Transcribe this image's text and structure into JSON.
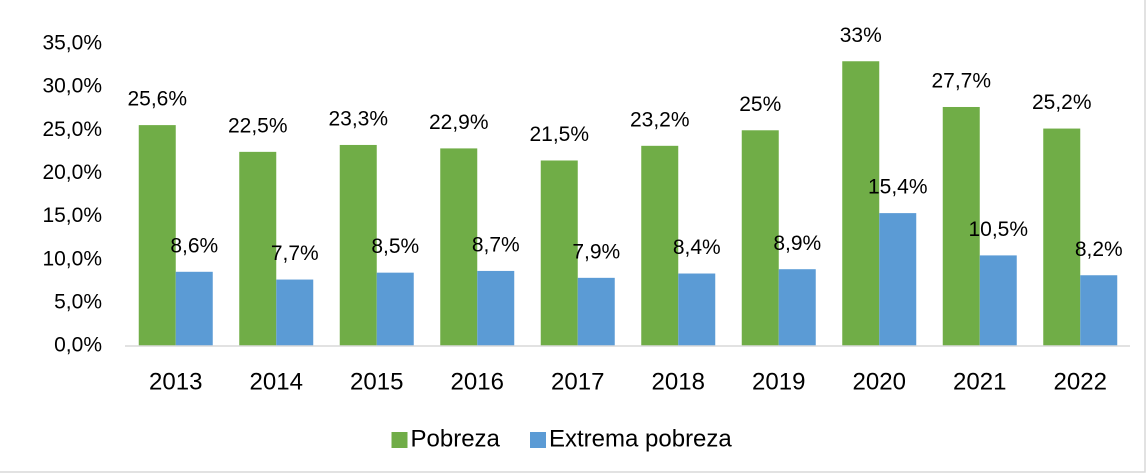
{
  "chart_data": {
    "type": "bar",
    "categories": [
      "2013",
      "2014",
      "2015",
      "2016",
      "2017",
      "2018",
      "2019",
      "2020",
      "2021",
      "2022"
    ],
    "series": [
      {
        "name": "Pobreza",
        "color": "#70ad47",
        "values": [
          25.6,
          22.5,
          23.3,
          22.9,
          21.5,
          23.2,
          25,
          33,
          27.7,
          25.2
        ],
        "value_labels": [
          "25,6%",
          "22,5%",
          "23,3%",
          "22,9%",
          "21,5%",
          "23,2%",
          "25%",
          "33%",
          "27,7%",
          "25,2%"
        ]
      },
      {
        "name": "Extrema pobreza",
        "color": "#5b9bd5",
        "values": [
          8.6,
          7.7,
          8.5,
          8.7,
          7.9,
          8.4,
          8.9,
          15.4,
          10.5,
          8.2
        ],
        "value_labels": [
          "8,6%",
          "7,7%",
          "8,5%",
          "8,7%",
          "7,9%",
          "8,4%",
          "8,9%",
          "15,4%",
          "10,5%",
          "8,2%"
        ]
      }
    ],
    "ylim": [
      0,
      35
    ],
    "yticks": [
      {
        "value": 0,
        "label": "0,0%"
      },
      {
        "value": 5,
        "label": "5,0%"
      },
      {
        "value": 10,
        "label": "10,0%"
      },
      {
        "value": 15,
        "label": "15,0%"
      },
      {
        "value": 20,
        "label": "20,0%"
      },
      {
        "value": 25,
        "label": "25,0%"
      },
      {
        "value": 30,
        "label": "30,0%"
      },
      {
        "value": 35,
        "label": "35,0%"
      }
    ],
    "legend": "bottom"
  }
}
